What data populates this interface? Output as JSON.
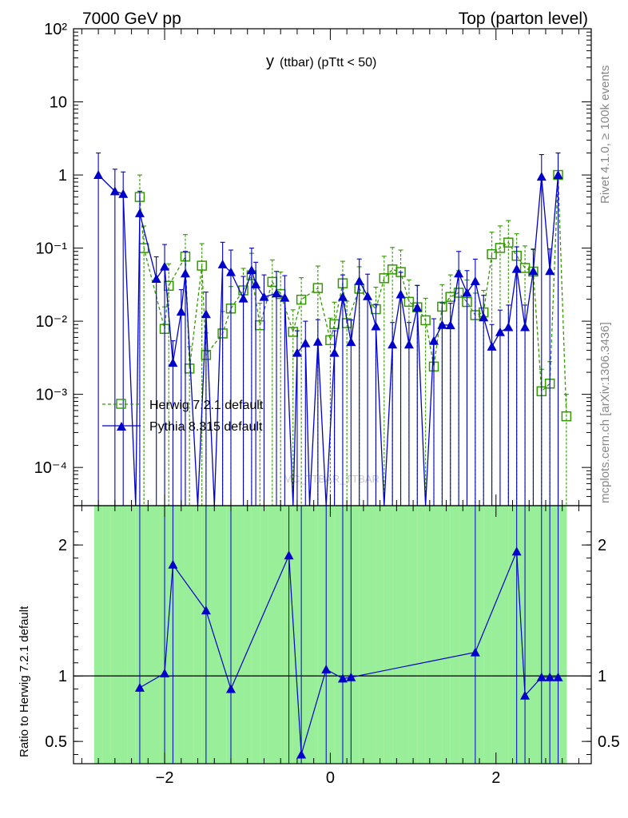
{
  "header": {
    "left": "7000 GeV pp",
    "right": "Top (parton level)"
  },
  "sidebar": {
    "rivet": "Rivet 4.1.0, ≥ 100k events",
    "mcplots": "mcplots.cern.ch [arXiv:1306.3436]"
  },
  "chart_data": {
    "type": "line",
    "title": "y",
    "subtitle": "(ttbar)  (pTtt < 50)",
    "watermark": "MC_TTBAR_TTBAR",
    "xlabel": "",
    "ylabel_ratio": "Ratio to Herwig 7.2.1 default",
    "xlim": [
      -3.1,
      3.15
    ],
    "ylim": [
      3e-05,
      100
    ],
    "yscale": "log",
    "ratio_ylim": [
      0.33,
      2.3
    ],
    "x_ticks": [
      -2,
      0,
      2
    ],
    "x_tick_labels": [
      "−2",
      "0",
      "2"
    ],
    "y_tick_labels": [
      "10⁻⁴",
      "10⁻³",
      "10⁻²",
      "10⁻¹",
      "1",
      "10",
      "10²"
    ],
    "ratio_tick_labels": [
      "0.5",
      "1",
      "2"
    ],
    "legend": [
      "Herwig 7.2.1 default",
      "Pythia 8.315 default"
    ],
    "series": [
      {
        "name": "Herwig 7.2.1 default",
        "color": "#339900",
        "marker": "open-square",
        "x": [
          -2.3,
          -2.25,
          -2.0,
          -1.95,
          -1.75,
          -1.7,
          -1.55,
          -1.5,
          -1.3,
          -1.2,
          -1.05,
          -0.95,
          -0.85,
          -0.7,
          -0.6,
          -0.45,
          -0.35,
          -0.15,
          0.0,
          0.05,
          0.15,
          0.2,
          0.35,
          0.55,
          0.65,
          0.75,
          0.85,
          0.95,
          1.05,
          1.15,
          1.25,
          1.35,
          1.45,
          1.55,
          1.65,
          1.75,
          1.85,
          1.95,
          2.05,
          2.15,
          2.25,
          2.35,
          2.45,
          2.55,
          2.65,
          2.75,
          2.85
        ],
        "values": [
          0.5,
          0.1,
          0.00785,
          0.0305,
          0.0765,
          0.00225,
          0.0575,
          0.00345,
          0.0068,
          0.0149,
          0.0264,
          0.0424,
          0.0088,
          0.0345,
          0.0235,
          0.00715,
          0.0197,
          0.0284,
          0.0055,
          0.0091,
          0.033,
          0.0094,
          0.0278,
          0.0146,
          0.0387,
          0.051,
          0.047,
          0.0184,
          0.0155,
          0.0103,
          0.0024,
          0.0158,
          0.0215,
          0.0245,
          0.0183,
          0.0121,
          0.0132,
          0.0825,
          0.1005,
          0.119,
          0.0785,
          0.0535,
          0.0477,
          0.0011,
          0.0014,
          1.0,
          0.0005
        ]
      },
      {
        "name": "Pythia 8.315 default",
        "color": "#0000cc",
        "marker": "filled-triangle",
        "x": [
          -2.8,
          -2.6,
          -2.5,
          -2.35,
          -2.3,
          -2.1,
          -2.0,
          -1.9,
          -1.8,
          -1.75,
          -1.6,
          -1.5,
          -1.4,
          -1.3,
          -1.2,
          -1.05,
          -0.95,
          -0.9,
          -0.8,
          -0.65,
          -0.55,
          -0.45,
          -0.4,
          -0.3,
          -0.25,
          -0.15,
          -0.05,
          0.05,
          0.15,
          0.25,
          0.35,
          0.45,
          0.55,
          0.65,
          0.75,
          0.85,
          0.95,
          1.05,
          1.15,
          1.25,
          1.35,
          1.45,
          1.55,
          1.65,
          1.75,
          1.85,
          1.95,
          2.05,
          2.15,
          2.25,
          2.35,
          2.45,
          2.55,
          2.65,
          2.75
        ],
        "values": [
          1.0,
          0.6,
          0.55,
          2e-06,
          0.3,
          0.038,
          0.056,
          0.0027,
          0.0135,
          0.045,
          2e-06,
          0.0125,
          1e-06,
          0.06,
          0.047,
          0.0205,
          0.05,
          0.032,
          0.0215,
          0.024,
          0.021,
          2e-06,
          0.0037,
          0.005,
          2e-06,
          0.00525,
          2e-06,
          0.0037,
          0.0215,
          0.0052,
          0.0355,
          0.022,
          0.0085,
          2e-06,
          0.0048,
          0.0233,
          0.0048,
          0.0154,
          2e-06,
          0.0054,
          0.0089,
          0.0088,
          0.045,
          0.0246,
          0.0353,
          0.0113,
          0.0045,
          0.0071,
          0.0083,
          0.052,
          0.0083,
          0.0485,
          0.95,
          0.0486,
          1.0
        ]
      }
    ],
    "ratio": {
      "x": [
        -2.3,
        -2.0,
        -1.9,
        -1.5,
        -1.2,
        -0.5,
        -0.35,
        -0.05,
        0.15,
        0.25,
        1.75,
        2.25,
        2.35,
        2.55,
        2.65,
        2.75
      ],
      "values": [
        0.91,
        1.02,
        1.85,
        1.5,
        0.9,
        1.92,
        0.4,
        1.05,
        0.98,
        0.99,
        1.18,
        1.95,
        0.85,
        0.99,
        0.99,
        0.99
      ]
    }
  }
}
